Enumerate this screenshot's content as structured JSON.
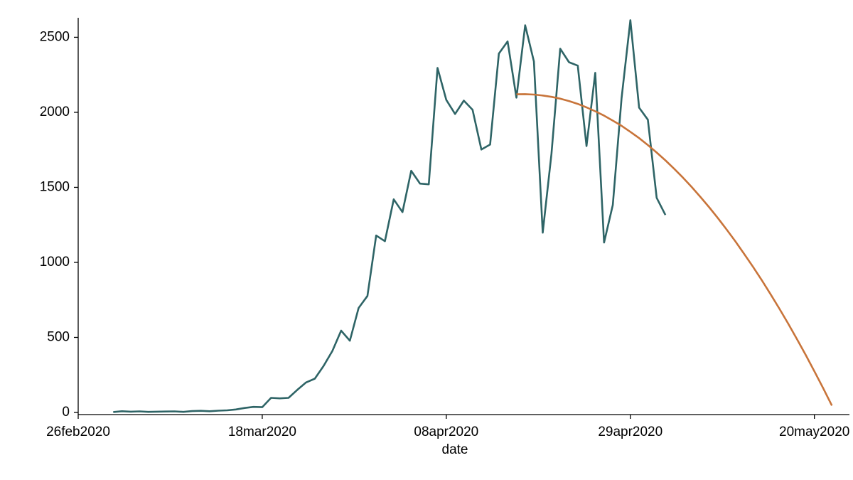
{
  "chart_data": {
    "type": "line",
    "x_label": "date",
    "xlim": [
      "2020-02-26",
      "2020-05-24"
    ],
    "xticks": [
      {
        "value": "2020-02-26",
        "label": "26feb2020"
      },
      {
        "value": "2020-03-18",
        "label": "18mar2020"
      },
      {
        "value": "2020-04-08",
        "label": "08apr2020"
      },
      {
        "value": "2020-04-29",
        "label": "29apr2020"
      },
      {
        "value": "2020-05-20",
        "label": "20may2020"
      }
    ],
    "ylim": [
      0,
      2630
    ],
    "yticks": [
      0,
      500,
      1000,
      1500,
      2000,
      2500
    ],
    "series": [
      {
        "color": "#2e6466",
        "x": [
          "2020-03-01",
          "2020-03-02",
          "2020-03-03",
          "2020-03-04",
          "2020-03-05",
          "2020-03-06",
          "2020-03-07",
          "2020-03-08",
          "2020-03-09",
          "2020-03-10",
          "2020-03-11",
          "2020-03-12",
          "2020-03-13",
          "2020-03-14",
          "2020-03-15",
          "2020-03-16",
          "2020-03-17",
          "2020-03-18",
          "2020-03-19",
          "2020-03-20",
          "2020-03-21",
          "2020-03-22",
          "2020-03-23",
          "2020-03-24",
          "2020-03-25",
          "2020-03-26",
          "2020-03-27",
          "2020-03-28",
          "2020-03-29",
          "2020-03-30",
          "2020-03-31",
          "2020-04-01",
          "2020-04-02",
          "2020-04-03",
          "2020-04-04",
          "2020-04-05",
          "2020-04-06",
          "2020-04-07",
          "2020-04-08",
          "2020-04-09",
          "2020-04-10",
          "2020-04-11",
          "2020-04-12",
          "2020-04-13",
          "2020-04-14",
          "2020-04-15",
          "2020-04-16",
          "2020-04-17",
          "2020-04-18",
          "2020-04-19",
          "2020-04-20",
          "2020-04-21",
          "2020-04-22",
          "2020-04-23",
          "2020-04-24",
          "2020-04-25",
          "2020-04-26",
          "2020-04-27",
          "2020-04-28",
          "2020-04-29",
          "2020-04-30",
          "2020-05-01",
          "2020-05-02",
          "2020-05-03"
        ],
        "values": [
          3,
          8,
          5,
          7,
          4,
          5,
          6,
          7,
          4,
          9,
          11,
          8,
          12,
          14,
          20,
          30,
          37,
          35,
          97,
          94,
          97,
          150,
          200,
          225,
          310,
          410,
          545,
          478,
          696,
          776,
          1179,
          1141,
          1420,
          1335,
          1610,
          1525,
          1520,
          2296,
          2083,
          1989,
          2078,
          2017,
          1752,
          1785,
          2391,
          2472,
          2098,
          2580,
          2339,
          1198,
          1723,
          2424,
          2334,
          2311,
          1775,
          2263,
          1132,
          1383,
          2093,
          2614,
          2031,
          1951,
          1430,
          1316
        ]
      },
      {
        "color": "#c8743a",
        "x": [
          "2020-04-16",
          "2020-04-17",
          "2020-04-18",
          "2020-04-19",
          "2020-04-20",
          "2020-04-21",
          "2020-04-22",
          "2020-04-23",
          "2020-04-24",
          "2020-04-25",
          "2020-04-26",
          "2020-04-27",
          "2020-04-28",
          "2020-04-29",
          "2020-04-30",
          "2020-05-01",
          "2020-05-02",
          "2020-05-03",
          "2020-05-04",
          "2020-05-05",
          "2020-05-06",
          "2020-05-07",
          "2020-05-08",
          "2020-05-09",
          "2020-05-10",
          "2020-05-11",
          "2020-05-12",
          "2020-05-13",
          "2020-05-14",
          "2020-05-15",
          "2020-05-16",
          "2020-05-17",
          "2020-05-18",
          "2020-05-19",
          "2020-05-20",
          "2020-05-21",
          "2020-05-22"
        ],
        "values": [
          2120,
          2121,
          2118,
          2112,
          2103,
          2091,
          2075,
          2056,
          2033,
          2007,
          1978,
          1945,
          1910,
          1870,
          1828,
          1782,
          1732,
          1680,
          1624,
          1565,
          1502,
          1436,
          1367,
          1294,
          1218,
          1139,
          1056,
          970,
          881,
          788,
          692,
          593,
          490,
          384,
          274,
          162,
          46
        ]
      }
    ]
  }
}
